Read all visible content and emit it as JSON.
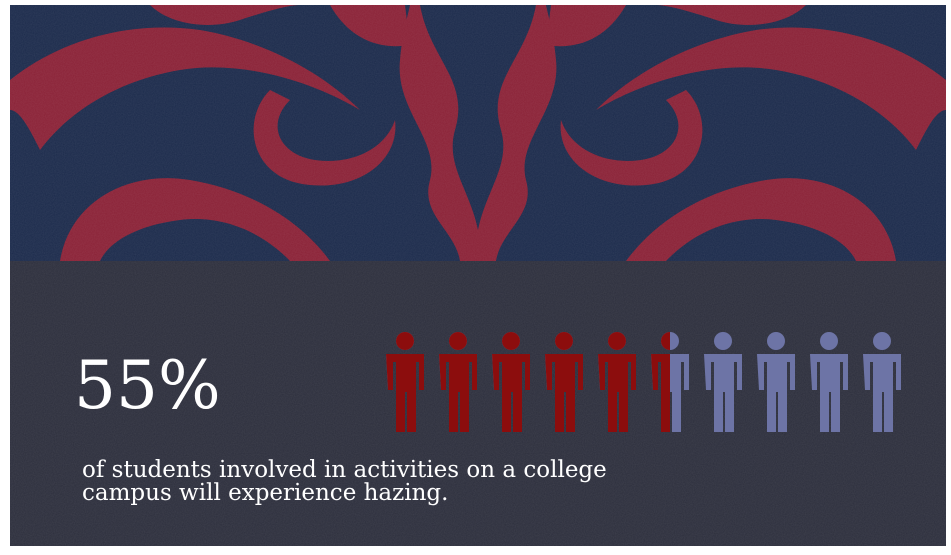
{
  "stat": {
    "value": 55,
    "label": "55%"
  },
  "caption": [
    "of students involved  in activities on a college",
    "campus will experience hazing."
  ],
  "filled_color": "#8c0d0d",
  "empty_color": "#6d74a6"
}
